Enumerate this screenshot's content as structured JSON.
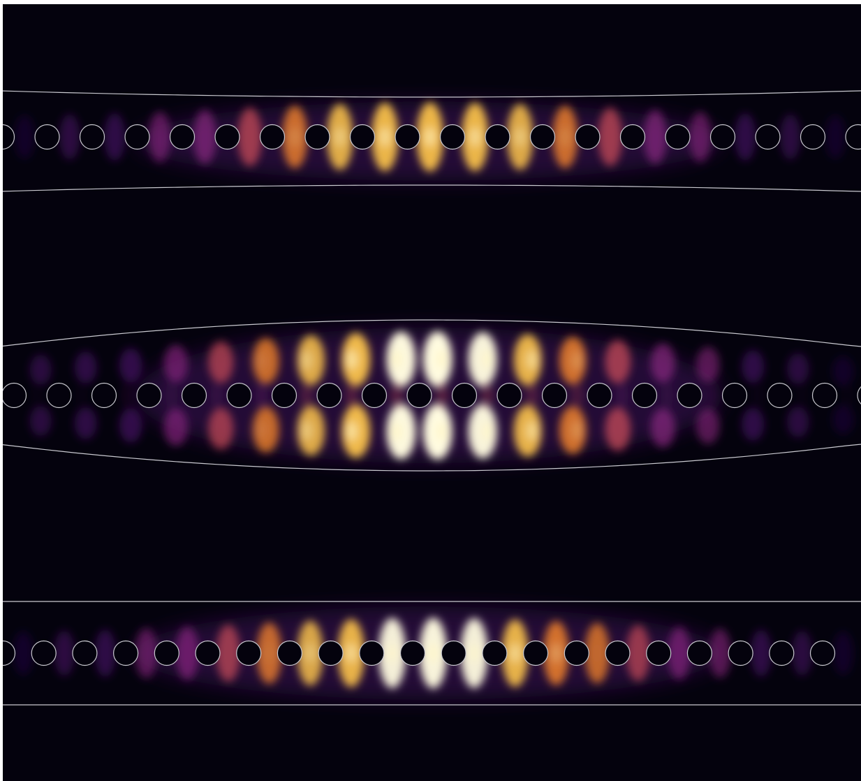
{
  "figure": {
    "background_color": "#04020d",
    "outline_color": "#c9c9cf",
    "colormap": [
      "#04020d",
      "#2a0a52",
      "#5e1384",
      "#9a2a8c",
      "#d14f5a",
      "#f7862a",
      "#fcc34a",
      "#fffbe0"
    ]
  },
  "panels": [
    {
      "name": "waveguide-upper",
      "outline_shape": "narrow-taper",
      "hole_count": 20,
      "mode_lobes": "single",
      "relative_peak_intensity": 0.9
    },
    {
      "name": "waveguide-middle",
      "outline_shape": "wide-taper",
      "hole_count": 20,
      "mode_lobes": "double",
      "relative_peak_intensity": 1.0
    },
    {
      "name": "waveguide-lower",
      "outline_shape": "straight",
      "hole_count": 21,
      "mode_lobes": "single",
      "relative_peak_intensity": 0.95
    }
  ]
}
